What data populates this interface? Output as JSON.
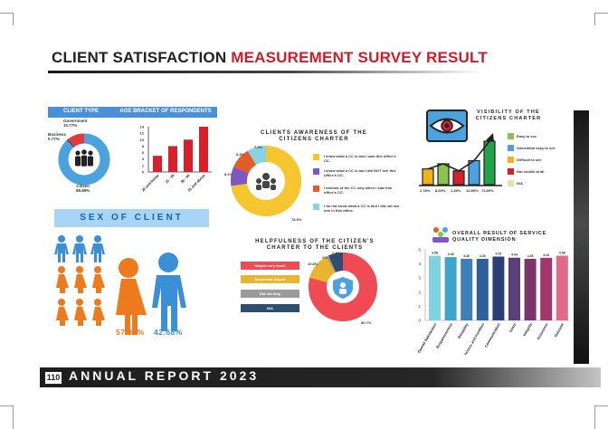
{
  "title": {
    "part1": "CLIENT SATISFACTION",
    "part2": "MEASUREMENT SURVEY RESULT"
  },
  "client_type": {
    "header": "CLIENT TYPE",
    "government_label": "Government",
    "government_pct": "10.77%",
    "business_label": "Business",
    "business_pct": "0.77%",
    "citizen_label": "Citizen",
    "citizen_pct": "88.89%"
  },
  "age_bracket": {
    "header": "AGE BRACKET OF RESPONDENTS"
  },
  "sex": {
    "title": "SEX OF CLIENT",
    "female_pct": "57.32%",
    "male_pct": "42.68%"
  },
  "awareness": {
    "title": "CLIENTS AWARENESS OF THE CITIZENS CHARTER",
    "labels": {
      "a": "7.9%",
      "b": "8.3%",
      "c": "8.1%",
      "d": "78.3%"
    },
    "legend": [
      "I know what a CC is and I saw this office's CC.",
      "I know what a CC is but I did NOT see this office's CC.",
      "I learned of the CC only when I saw this office's CC.",
      "I do not know what a CC is and I did not see one in this office."
    ]
  },
  "helpfulness": {
    "title": "HELPFULNESS OF THE CITIZEN'S CHARTER TO THE CLIENTS",
    "legend": [
      "Helped very much",
      "Somewhat helped",
      "Did not help",
      "N/A"
    ],
    "labels": {
      "a": "1%",
      "b": "7.8%",
      "c": "10.8%",
      "d": "80.7%"
    }
  },
  "visibility": {
    "title": "VISIBILITY OF THE CITIZENS CHARTER",
    "legend": [
      "Easy to see",
      "Somewhat easy to see",
      "Difficult to see",
      "Not visible at all",
      "N/A"
    ],
    "values": [
      "2.78%",
      "8.69%",
      "1.39%",
      "13.89%",
      "73.89%"
    ]
  },
  "service_quality": {
    "title": "OVERALL RESULT OF SERVICE QUALITY DIMENSION"
  },
  "footer": {
    "page": "110",
    "text": "ANNUAL REPORT 2023"
  },
  "chart_data": [
    {
      "type": "bar",
      "title": "AGE BRACKET OF RESPONDENTS",
      "categories": [
        "20 and below",
        "21 - 35",
        "36 - 50",
        "51 and above"
      ],
      "values": [
        5,
        8,
        10,
        14
      ],
      "ylim": [
        0,
        14
      ],
      "yticks": [
        "14",
        "12",
        "10",
        "8",
        "6",
        "4",
        "2",
        "0"
      ],
      "colors": [
        "#d6202c"
      ]
    },
    {
      "type": "pie",
      "title": "CLIENT TYPE",
      "categories": [
        "Citizen",
        "Government",
        "Business"
      ],
      "values": [
        88.89,
        10.77,
        0.77
      ],
      "colors": [
        "#4aa3df",
        "#e23b3b",
        "#1f4f8a"
      ]
    },
    {
      "type": "pie",
      "title": "CLIENTS AWARENESS OF THE CITIZENS CHARTER",
      "categories": [
        "I know what a CC is and I saw this office's CC.",
        "I know what a CC is but I did NOT see this office's CC.",
        "I learned of the CC only when I saw this office's CC.",
        "I do not know what a CC is and I did not see one in this office."
      ],
      "values": [
        78.3,
        8.3,
        8.1,
        7.9
      ],
      "colors": [
        "#f6c630",
        "#7e57c2",
        "#e35d2a",
        "#86d3e5"
      ]
    },
    {
      "type": "pie",
      "title": "HELPFULNESS OF THE CITIZEN'S CHARTER TO THE CLIENTS",
      "categories": [
        "Helped very much",
        "Somewhat helped",
        "Did not help",
        "N/A"
      ],
      "values": [
        80.7,
        10.8,
        1,
        7.8
      ],
      "colors": [
        "#ee4b55",
        "#e8b531",
        "#9a9a9a",
        "#2d4e6e"
      ]
    },
    {
      "type": "bar",
      "title": "VISIBILITY OF THE CITIZENS CHARTER",
      "categories": [
        "Easy to see",
        "Somewhat easy to see",
        "Difficult to see",
        "Not visible at all",
        "N/A"
      ],
      "values": [
        2.78,
        8.69,
        1.39,
        13.89,
        73.89
      ],
      "colors": [
        "#f2b21b",
        "#8bc34a",
        "#d6202c",
        "#4aa3df",
        "#21a349"
      ]
    },
    {
      "type": "bar",
      "title": "OVERALL RESULT OF SERVICE QUALITY DIMENSION",
      "categories": [
        "Overall Satisfaction",
        "Responsiveness",
        "Reliability",
        "Access and Facilities",
        "Communication",
        "Costs",
        "Integrity",
        "Assurance",
        "Outcome"
      ],
      "values": [
        4.58,
        4.48,
        4.36,
        4.36,
        4.52,
        4.44,
        4.36,
        4.43,
        4.58
      ],
      "value_labels": [
        "4.58",
        "4.48",
        "4.36",
        "4.36",
        "4.52",
        "4.44",
        "4.36",
        "4.43",
        "4.58"
      ],
      "ylim": [
        0,
        5
      ],
      "yticks": [
        "5",
        "4",
        "3",
        "2",
        "1",
        "0"
      ],
      "colors": [
        "#7fd3e0",
        "#3ea4c9",
        "#3d7fb8",
        "#2f5f9c",
        "#2a3f7a",
        "#5b3f7a",
        "#7a3668",
        "#a6356a",
        "#e06b86"
      ]
    }
  ]
}
